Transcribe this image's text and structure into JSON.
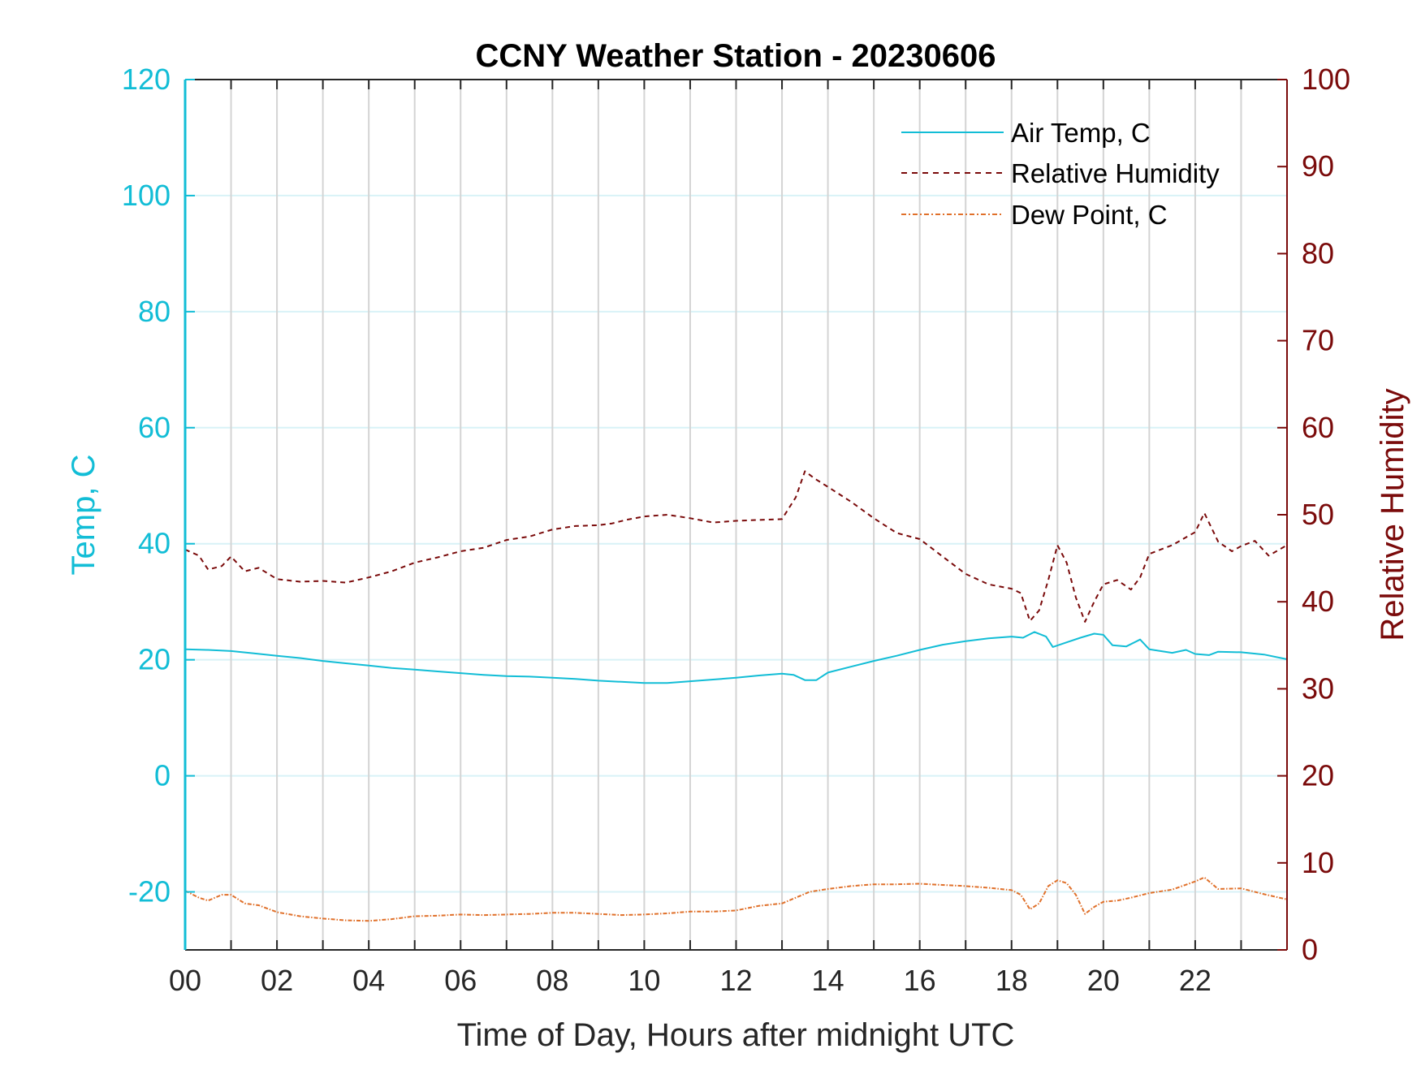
{
  "chart_data": {
    "type": "line",
    "title": "CCNY Weather Station - 20230606",
    "xlabel": "Time of Day, Hours after midnight UTC",
    "ylabel_left": "Temp, C",
    "ylabel_right": "Relative Humidity",
    "xlim": [
      0,
      24
    ],
    "ylim_left": [
      -30,
      120
    ],
    "ylim_right": [
      0,
      100
    ],
    "x_ticks": [
      0,
      2,
      4,
      6,
      8,
      10,
      12,
      14,
      16,
      18,
      20,
      22
    ],
    "x_tick_labels": [
      "00",
      "02",
      "04",
      "06",
      "08",
      "10",
      "12",
      "14",
      "16",
      "18",
      "20",
      "22"
    ],
    "y_left_ticks": [
      -20,
      0,
      20,
      40,
      60,
      80,
      100,
      120
    ],
    "y_left_tick_labels": [
      "-20",
      "0",
      "20",
      "40",
      "60",
      "80",
      "100",
      "120"
    ],
    "y_right_ticks": [
      0,
      10,
      20,
      30,
      40,
      50,
      60,
      70,
      80,
      90,
      100
    ],
    "y_right_tick_labels": [
      "0",
      "10",
      "20",
      "30",
      "40",
      "50",
      "60",
      "70",
      "80",
      "90",
      "100"
    ],
    "grid": true,
    "legend_position": "top-right",
    "colors": {
      "temp": "#12bdd6",
      "rh": "#7a0a0a",
      "dew": "#e0702a",
      "grid_v": "#d4d4d4",
      "grid_h": "#d8f2f7"
    },
    "series": [
      {
        "name": "Air Temp, C",
        "axis": "left",
        "style": "solid",
        "color": "#12bdd6",
        "x": [
          0,
          0.5,
          1,
          1.5,
          2,
          2.5,
          3,
          3.5,
          4,
          4.5,
          5,
          5.5,
          6,
          6.5,
          7,
          7.5,
          8,
          8.5,
          9,
          9.5,
          10,
          10.5,
          11,
          11.5,
          12,
          12.5,
          13,
          13.25,
          13.5,
          13.75,
          14,
          14.5,
          15,
          15.5,
          16,
          16.5,
          17,
          17.5,
          18,
          18.25,
          18.5,
          18.75,
          18.9,
          19.2,
          19.5,
          19.8,
          20.0,
          20.2,
          20.5,
          20.8,
          21.0,
          21.5,
          21.8,
          22.0,
          22.3,
          22.5,
          23.0,
          23.5,
          24.0
        ],
        "values": [
          21.8,
          21.7,
          21.5,
          21.1,
          20.7,
          20.3,
          19.8,
          19.4,
          19.0,
          18.6,
          18.3,
          18.0,
          17.7,
          17.4,
          17.2,
          17.1,
          16.9,
          16.7,
          16.4,
          16.2,
          16.0,
          16.0,
          16.3,
          16.6,
          16.9,
          17.3,
          17.6,
          17.4,
          16.5,
          16.5,
          17.8,
          18.8,
          19.8,
          20.7,
          21.7,
          22.6,
          23.2,
          23.7,
          24.0,
          23.8,
          24.8,
          24.0,
          22.2,
          23.0,
          23.8,
          24.5,
          24.3,
          22.5,
          22.3,
          23.5,
          21.8,
          21.2,
          21.7,
          21.0,
          20.8,
          21.4,
          21.3,
          20.9,
          20.1
        ]
      },
      {
        "name": "Relative Humidity",
        "axis": "right",
        "style": "dashed",
        "color": "#7a0a0a",
        "x": [
          0,
          0.3,
          0.5,
          0.8,
          1.0,
          1.3,
          1.6,
          2.0,
          2.5,
          3.0,
          3.5,
          4.0,
          4.5,
          5.0,
          5.5,
          6.0,
          6.5,
          7.0,
          7.5,
          8.0,
          8.5,
          9.0,
          9.3,
          9.6,
          10.0,
          10.5,
          11.0,
          11.5,
          12.0,
          12.5,
          13.0,
          13.3,
          13.5,
          13.7,
          14.0,
          14.5,
          15.0,
          15.5,
          16.0,
          16.5,
          17.0,
          17.5,
          18.0,
          18.2,
          18.4,
          18.6,
          18.8,
          19.0,
          19.2,
          19.4,
          19.6,
          19.8,
          20.0,
          20.3,
          20.6,
          20.8,
          21.0,
          21.5,
          22.0,
          22.2,
          22.5,
          22.8,
          23.0,
          23.3,
          23.6,
          24.0
        ],
        "values": [
          46.0,
          45.3,
          43.7,
          44.1,
          45.2,
          43.5,
          43.9,
          42.6,
          42.3,
          42.4,
          42.2,
          42.8,
          43.5,
          44.5,
          45.1,
          45.8,
          46.2,
          47.1,
          47.5,
          48.3,
          48.7,
          48.8,
          49.0,
          49.4,
          49.8,
          50.0,
          49.6,
          49.1,
          49.3,
          49.4,
          49.5,
          52.0,
          55.0,
          54.2,
          53.2,
          51.5,
          49.6,
          47.9,
          47.2,
          45.2,
          43.2,
          42.0,
          41.5,
          41.0,
          37.8,
          39.0,
          42.5,
          46.5,
          44.5,
          40.5,
          37.7,
          40.0,
          42.0,
          42.5,
          41.4,
          42.8,
          45.5,
          46.5,
          48.0,
          50.2,
          46.9,
          45.8,
          46.4,
          47.0,
          45.3,
          46.5
        ]
      },
      {
        "name": "Dew Point, C",
        "axis": "left",
        "style": "dash-dot",
        "color": "#e0702a",
        "x": [
          0,
          0.3,
          0.5,
          0.8,
          1.0,
          1.3,
          1.6,
          2.0,
          2.5,
          3.0,
          3.5,
          4.0,
          4.5,
          5.0,
          5.5,
          6.0,
          6.5,
          7.0,
          7.5,
          8.0,
          8.5,
          9.0,
          9.5,
          10.0,
          10.5,
          11.0,
          11.5,
          12.0,
          12.5,
          13.0,
          13.3,
          13.6,
          14.0,
          14.5,
          15.0,
          15.5,
          16.0,
          16.5,
          17.0,
          17.5,
          18.0,
          18.2,
          18.4,
          18.6,
          18.8,
          19.0,
          19.2,
          19.4,
          19.6,
          19.8,
          20.0,
          20.3,
          20.6,
          21.0,
          21.5,
          22.0,
          22.2,
          22.5,
          23.0,
          23.5,
          24.0
        ],
        "values": [
          -19.8,
          -21.0,
          -21.5,
          -20.5,
          -20.5,
          -22.0,
          -22.3,
          -23.5,
          -24.2,
          -24.6,
          -24.9,
          -25.0,
          -24.7,
          -24.2,
          -24.1,
          -23.9,
          -24.0,
          -23.9,
          -23.8,
          -23.6,
          -23.6,
          -23.8,
          -24.0,
          -23.9,
          -23.7,
          -23.4,
          -23.4,
          -23.2,
          -22.4,
          -22.0,
          -21.0,
          -20.0,
          -19.5,
          -19.0,
          -18.7,
          -18.7,
          -18.6,
          -18.8,
          -19.0,
          -19.3,
          -19.7,
          -20.5,
          -23.0,
          -22.0,
          -19.0,
          -18.0,
          -18.5,
          -20.5,
          -23.8,
          -22.6,
          -21.7,
          -21.5,
          -21.0,
          -20.2,
          -19.6,
          -18.2,
          -17.5,
          -19.5,
          -19.4,
          -20.4,
          -21.3
        ]
      }
    ]
  }
}
